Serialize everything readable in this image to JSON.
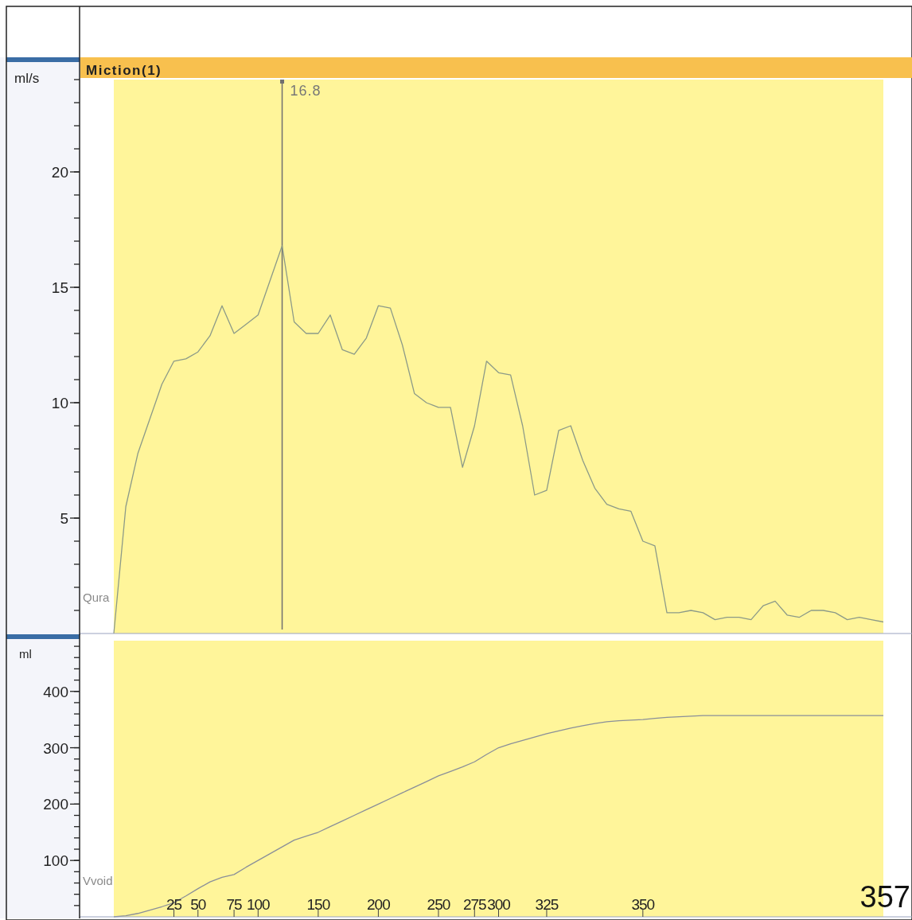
{
  "chart_data": [
    {
      "type": "line",
      "title": "Miction(1)",
      "ylabel": "ml/s",
      "ylim": [
        0,
        24
      ],
      "tick_labels": "y",
      "categories": [
        null,
        null,
        null,
        null,
        null,
        null,
        null,
        null,
        null,
        null,
        null,
        null,
        null,
        null,
        null,
        null,
        null,
        null,
        null,
        null,
        null,
        null,
        null,
        null,
        null,
        null,
        null,
        null,
        null,
        null,
        null,
        null,
        null,
        null,
        null,
        null,
        null,
        null,
        null,
        null,
        null,
        null,
        null,
        null,
        null,
        null,
        null,
        null,
        null,
        null,
        null,
        null,
        null,
        null,
        null,
        null,
        null,
        null,
        null,
        null,
        null,
        null,
        null,
        null,
        null
      ],
      "yticks": [
        5,
        10,
        15,
        20
      ],
      "annotations": [
        "16.8"
      ],
      "series": [
        {
          "name": "Qura",
          "color": "#8c9a88",
          "values": [
            0,
            5.5,
            7.8,
            9.3,
            10.8,
            11.8,
            11.9,
            12.2,
            12.9,
            14.2,
            13,
            13.4,
            13.8,
            15.3,
            16.8,
            13.5,
            13,
            13,
            13.8,
            12.3,
            12.1,
            12.8,
            14.2,
            14.1,
            12.5,
            10.4,
            10,
            9.8,
            9.8,
            7.2,
            9,
            11.8,
            11.3,
            11.2,
            9,
            6,
            6.2,
            8.8,
            9,
            7.5,
            6.3,
            5.6,
            5.4,
            5.3,
            4,
            3.8,
            0.9,
            0.9,
            1,
            0.9,
            0.6,
            0.7,
            0.7,
            0.6,
            1.2,
            1.4,
            0.8,
            0.7,
            1,
            1,
            0.9,
            0.6,
            0.7,
            0.6,
            0.5
          ]
        }
      ]
    },
    {
      "type": "line",
      "ylabel": "ml",
      "ylim": [
        0,
        490
      ],
      "categories": [
        null,
        null,
        null,
        null,
        null,
        "25",
        null,
        "50",
        null,
        null,
        "75",
        null,
        "100",
        null,
        null,
        null,
        null,
        "150",
        null,
        null,
        null,
        null,
        "200",
        null,
        null,
        null,
        null,
        "250",
        null,
        null,
        "275",
        null,
        "300",
        null,
        null,
        null,
        "325",
        null,
        null,
        null,
        null,
        null,
        null,
        null,
        "350",
        null,
        null,
        null,
        null,
        null,
        null,
        null,
        null,
        null,
        null,
        null,
        null,
        null,
        null,
        null,
        null,
        null,
        null,
        null,
        null
      ],
      "yticks": [
        100,
        200,
        300,
        400
      ],
      "annotations": [
        "357"
      ],
      "series": [
        {
          "name": "Vvoid",
          "color": "#8a8f99",
          "values": [
            0,
            2,
            6,
            12,
            18,
            25,
            37,
            50,
            62,
            70,
            75,
            88,
            100,
            112,
            124,
            136,
            143,
            150,
            160,
            170,
            180,
            190,
            200,
            210,
            220,
            230,
            240,
            250,
            258,
            266,
            275,
            288,
            300,
            307,
            313,
            319,
            325,
            330,
            335,
            339,
            343,
            346,
            348,
            349,
            350,
            352,
            354,
            355,
            356,
            357,
            357,
            357,
            357,
            357,
            357,
            357,
            357,
            357,
            357,
            357,
            357,
            357,
            357,
            357,
            357
          ]
        }
      ]
    }
  ]
}
